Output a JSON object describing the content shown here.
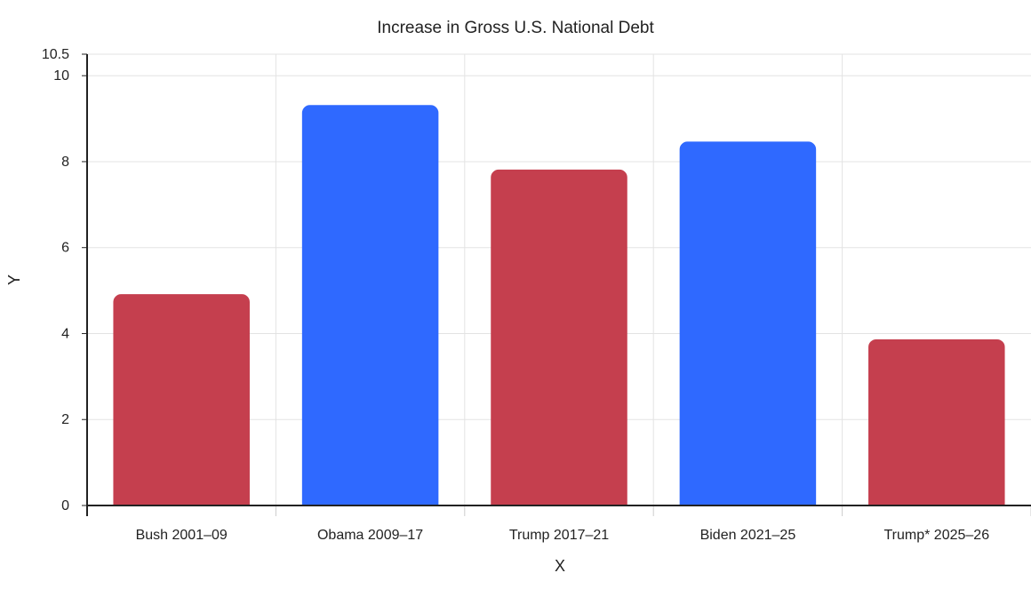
{
  "chart_data": {
    "type": "bar",
    "title": "Increase in Gross U.S. National Debt",
    "xlabel": "X",
    "ylabel": "Y",
    "categories": [
      "Bush 2001–09",
      "Obama 2009–17",
      "Trump 2017–21",
      "Biden 2021–25",
      "Trump* 2025–26"
    ],
    "values": [
      4.9,
      9.3,
      7.8,
      8.45,
      3.85
    ],
    "bar_colors": [
      "#c53f4e",
      "#2f69ff",
      "#c53f4e",
      "#2f69ff",
      "#c53f4e"
    ],
    "ylim": [
      0,
      10.5
    ],
    "yticks": [
      "0",
      "2",
      "4",
      "6",
      "8",
      "10",
      "10.5"
    ],
    "ytick_values": [
      0,
      2,
      4,
      6,
      8,
      10,
      10.5
    ],
    "grid": true,
    "legend": "none"
  }
}
